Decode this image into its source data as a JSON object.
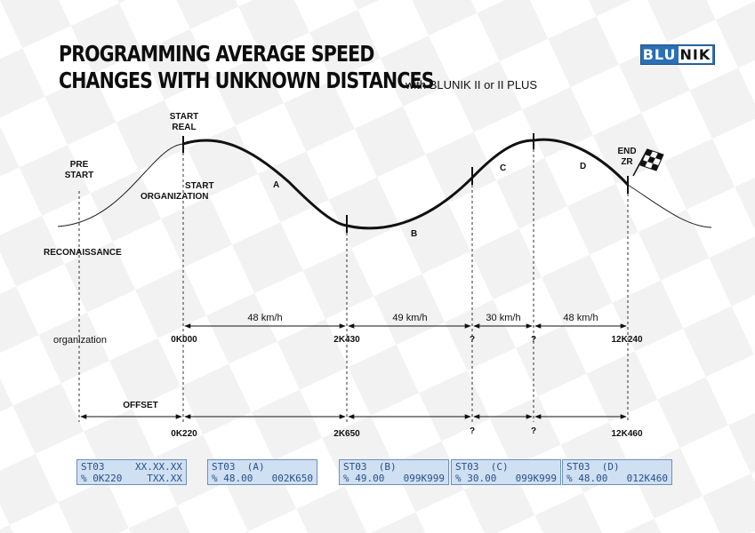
{
  "title": {
    "line1": "PROGRAMMING AVERAGE SPEED",
    "line2": "CHANGES WITH UNKNOWN DISTANCES",
    "subtitle": "with BLUNIK II or II PLUS"
  },
  "logo": {
    "text_a": "BLU",
    "text_b": "NIK"
  },
  "points": {
    "pre_start": [
      "PRE",
      "START"
    ],
    "start_real": [
      "START",
      "REAL"
    ],
    "start_org": [
      "START",
      "ORGANIZATION"
    ],
    "end_zr": [
      "END",
      "ZR"
    ],
    "reconnaissance": "RECONAISSANCE",
    "offset": "OFFSET"
  },
  "sections": [
    "A",
    "B",
    "C",
    "D"
  ],
  "organization_row": {
    "label": "organization",
    "values": [
      "0K000",
      "2K430",
      "?",
      "?",
      "12K240"
    ]
  },
  "offset_row": {
    "values": [
      "0K220",
      "2K650",
      "?",
      "?",
      "12K460"
    ]
  },
  "speeds": [
    "48 km/h",
    "49 km/h",
    "30 km/h",
    "48 km/h"
  ],
  "displays": [
    {
      "l1": "ST03",
      "r1": "XX.XX.XX",
      "l2": "% 0K220",
      "r2": "TXX.XX"
    },
    {
      "l1": "ST03  (A)",
      "r1": "",
      "l2": "% 48.00",
      "r2": "002K650"
    },
    {
      "l1": "ST03  (B)",
      "r1": "",
      "l2": "% 49.00",
      "r2": "099K999"
    },
    {
      "l1": "ST03  (C)",
      "r1": "",
      "l2": "% 30.00",
      "r2": "099K999"
    },
    {
      "l1": "ST03  (D)",
      "r1": "",
      "l2": "% 48.00",
      "r2": "012K460"
    }
  ],
  "colors": {
    "logo_blue": "#2b6fb5",
    "lcd_bg": "#cfe0f3",
    "lcd_text": "#2a4f86"
  }
}
